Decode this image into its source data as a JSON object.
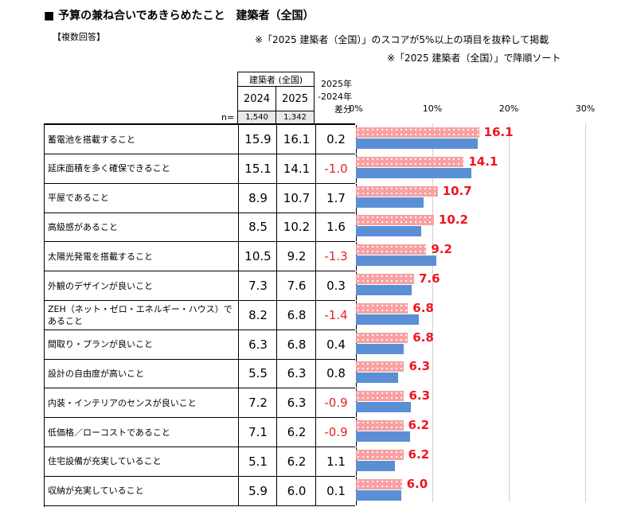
{
  "title": "■ 予算の兼ね合いであきらめたこと　建築者（全国）",
  "subtitle": "【複数回答】",
  "notes": [
    "※「2025 建築者（全国）」のスコアが5%以上の項目を抜粋して掲載",
    "※「2025 建築者（全国）」で降順ソート"
  ],
  "header": {
    "group": "建築者 (全国)",
    "y2024": "2024",
    "y2025": "2025",
    "diff": "2025年\n-2024年\n差分",
    "n_label": "n=",
    "n2024": "1,540",
    "n2025": "1,342"
  },
  "chart_data": {
    "type": "bar",
    "orientation": "horizontal",
    "axis_ticks": [
      "0%",
      "10%",
      "20%",
      "30%"
    ],
    "xlim": [
      0,
      30
    ],
    "grid": true,
    "colors": {
      "2025": "#f7a1a3",
      "2024": "#5a8fd5",
      "label": "#f0141e"
    },
    "categories": [
      "蓄電池を搭載すること",
      "延床面積を多く確保できること",
      "平屋であること",
      "高級感があること",
      "太陽光発電を搭載すること",
      "外観のデザインが良いこと",
      "ZEH（ネット・ゼロ・エネルギー・ハウス）であること",
      "間取り・プランが良いこと",
      "設計の自由度が高いこと",
      "内装・インテリアのセンスが良いこと",
      "低価格／ローコストであること",
      "住宅設備が充実していること",
      "収納が充実していること"
    ],
    "series": [
      {
        "name": "2024",
        "values": [
          15.9,
          15.1,
          8.9,
          8.5,
          10.5,
          7.3,
          8.2,
          6.3,
          5.5,
          7.2,
          7.1,
          5.1,
          5.9
        ]
      },
      {
        "name": "2025",
        "values": [
          16.1,
          14.1,
          10.7,
          10.2,
          9.2,
          7.6,
          6.8,
          6.8,
          6.3,
          6.3,
          6.2,
          6.2,
          6.0
        ]
      }
    ],
    "diff": [
      "0.2",
      "-1.0",
      "1.7",
      "1.6",
      "-1.3",
      "0.3",
      "-1.4",
      "0.4",
      "0.8",
      "-0.9",
      "-0.9",
      "1.1",
      "0.1"
    ]
  }
}
